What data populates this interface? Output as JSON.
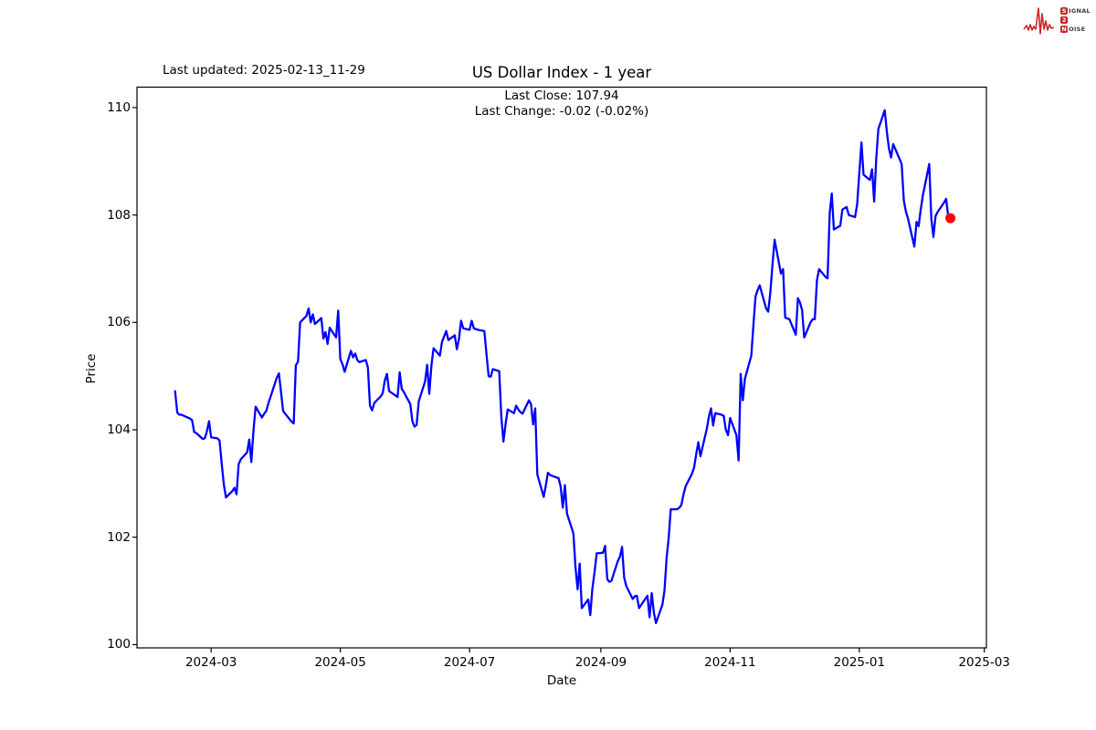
{
  "header": {
    "last_updated": "Last updated: 2025-02-13_11-29"
  },
  "logo": {
    "line1_first": "S",
    "line1_rest": "IGNAL",
    "line2": "2",
    "line3_first": "N",
    "line3_rest": "OISE",
    "accent_color": "#c62828"
  },
  "chart_data": {
    "type": "line",
    "title": "US Dollar Index - 1 year",
    "annotation": {
      "close_line": "Last Close: 107.94",
      "change_line": "Last Change: -0.02 (-0.02%)"
    },
    "last_close": 107.94,
    "last_change": "-0.02 (-0.02%)",
    "xlabel": "Date",
    "ylabel": "Price",
    "grid": false,
    "legend": null,
    "line_color": "#0000ff",
    "marker_color": "#ff0000",
    "ylim": [
      99.94,
      110.38
    ],
    "xlim": [
      "2024-01-26",
      "2025-03-02"
    ],
    "y_ticks": [
      100,
      102,
      104,
      106,
      108,
      110
    ],
    "x_ticks": [
      {
        "label": "2024-03",
        "date": "2024-03-01"
      },
      {
        "label": "2024-05",
        "date": "2024-05-01"
      },
      {
        "label": "2024-07",
        "date": "2024-07-01"
      },
      {
        "label": "2024-09",
        "date": "2024-09-01"
      },
      {
        "label": "2024-11",
        "date": "2024-11-01"
      },
      {
        "label": "2025-01",
        "date": "2025-01-01"
      },
      {
        "label": "2025-03",
        "date": "2025-03-01"
      }
    ],
    "series": [
      {
        "name": "US Dollar Index",
        "points": [
          [
            "2024-02-13",
            104.72
          ],
          [
            "2024-02-14",
            104.32
          ],
          [
            "2024-02-15",
            104.28
          ],
          [
            "2024-02-16",
            104.28
          ],
          [
            "2024-02-20",
            104.21
          ],
          [
            "2024-02-21",
            104.18
          ],
          [
            "2024-02-22",
            103.96
          ],
          [
            "2024-02-23",
            103.94
          ],
          [
            "2024-02-26",
            103.83
          ],
          [
            "2024-02-27",
            103.84
          ],
          [
            "2024-02-28",
            103.97
          ],
          [
            "2024-02-29",
            104.16
          ],
          [
            "2024-03-01",
            103.86
          ],
          [
            "2024-03-04",
            103.84
          ],
          [
            "2024-03-05",
            103.8
          ],
          [
            "2024-03-06",
            103.36
          ],
          [
            "2024-03-07",
            102.98
          ],
          [
            "2024-03-08",
            102.74
          ],
          [
            "2024-03-11",
            102.86
          ],
          [
            "2024-03-12",
            102.92
          ],
          [
            "2024-03-13",
            102.8
          ],
          [
            "2024-03-14",
            103.36
          ],
          [
            "2024-03-15",
            103.45
          ],
          [
            "2024-03-18",
            103.58
          ],
          [
            "2024-03-19",
            103.82
          ],
          [
            "2024-03-20",
            103.4
          ],
          [
            "2024-03-21",
            104.0
          ],
          [
            "2024-03-22",
            104.43
          ],
          [
            "2024-03-25",
            104.23
          ],
          [
            "2024-03-26",
            104.3
          ],
          [
            "2024-03-27",
            104.35
          ],
          [
            "2024-03-28",
            104.49
          ],
          [
            "2024-04-01",
            104.97
          ],
          [
            "2024-04-02",
            105.05
          ],
          [
            "2024-04-03",
            104.7
          ],
          [
            "2024-04-04",
            104.35
          ],
          [
            "2024-04-05",
            104.3
          ],
          [
            "2024-04-08",
            104.15
          ],
          [
            "2024-04-09",
            104.12
          ],
          [
            "2024-04-10",
            105.2
          ],
          [
            "2024-04-11",
            105.27
          ],
          [
            "2024-04-12",
            106.0
          ],
          [
            "2024-04-15",
            106.12
          ],
          [
            "2024-04-16",
            106.26
          ],
          [
            "2024-04-17",
            106.0
          ],
          [
            "2024-04-18",
            106.15
          ],
          [
            "2024-04-19",
            105.97
          ],
          [
            "2024-04-22",
            106.08
          ],
          [
            "2024-04-23",
            105.7
          ],
          [
            "2024-04-24",
            105.82
          ],
          [
            "2024-04-25",
            105.6
          ],
          [
            "2024-04-26",
            105.9
          ],
          [
            "2024-04-29",
            105.72
          ],
          [
            "2024-04-30",
            106.22
          ],
          [
            "2024-05-01",
            105.32
          ],
          [
            "2024-05-02",
            105.22
          ],
          [
            "2024-05-03",
            105.08
          ],
          [
            "2024-05-06",
            105.47
          ],
          [
            "2024-05-07",
            105.35
          ],
          [
            "2024-05-08",
            105.42
          ],
          [
            "2024-05-09",
            105.3
          ],
          [
            "2024-05-10",
            105.26
          ],
          [
            "2024-05-13",
            105.3
          ],
          [
            "2024-05-14",
            105.16
          ],
          [
            "2024-05-15",
            104.45
          ],
          [
            "2024-05-16",
            104.36
          ],
          [
            "2024-05-17",
            104.5
          ],
          [
            "2024-05-20",
            104.62
          ],
          [
            "2024-05-21",
            104.68
          ],
          [
            "2024-05-22",
            104.92
          ],
          [
            "2024-05-23",
            105.04
          ],
          [
            "2024-05-24",
            104.72
          ],
          [
            "2024-05-28",
            104.61
          ],
          [
            "2024-05-29",
            105.07
          ],
          [
            "2024-05-30",
            104.76
          ],
          [
            "2024-05-31",
            104.7
          ],
          [
            "2024-06-03",
            104.48
          ],
          [
            "2024-06-04",
            104.16
          ],
          [
            "2024-06-05",
            104.06
          ],
          [
            "2024-06-06",
            104.09
          ],
          [
            "2024-06-07",
            104.53
          ],
          [
            "2024-06-10",
            104.9
          ],
          [
            "2024-06-11",
            105.21
          ],
          [
            "2024-06-12",
            104.67
          ],
          [
            "2024-06-13",
            105.2
          ],
          [
            "2024-06-14",
            105.52
          ],
          [
            "2024-06-17",
            105.38
          ],
          [
            "2024-06-18",
            105.64
          ],
          [
            "2024-06-20",
            105.84
          ],
          [
            "2024-06-21",
            105.67
          ],
          [
            "2024-06-24",
            105.76
          ],
          [
            "2024-06-25",
            105.5
          ],
          [
            "2024-06-26",
            105.69
          ],
          [
            "2024-06-27",
            106.03
          ],
          [
            "2024-06-28",
            105.89
          ],
          [
            "2024-07-01",
            105.86
          ],
          [
            "2024-07-02",
            106.03
          ],
          [
            "2024-07-03",
            105.89
          ],
          [
            "2024-07-05",
            105.86
          ],
          [
            "2024-07-08",
            105.84
          ],
          [
            "2024-07-09",
            105.4
          ],
          [
            "2024-07-10",
            105.0
          ],
          [
            "2024-07-11",
            104.99
          ],
          [
            "2024-07-12",
            105.13
          ],
          [
            "2024-07-15",
            105.09
          ],
          [
            "2024-07-16",
            104.24
          ],
          [
            "2024-07-17",
            103.78
          ],
          [
            "2024-07-18",
            104.1
          ],
          [
            "2024-07-19",
            104.38
          ],
          [
            "2024-07-22",
            104.31
          ],
          [
            "2024-07-23",
            104.45
          ],
          [
            "2024-07-24",
            104.38
          ],
          [
            "2024-07-25",
            104.33
          ],
          [
            "2024-07-26",
            104.3
          ],
          [
            "2024-07-29",
            104.55
          ],
          [
            "2024-07-30",
            104.48
          ],
          [
            "2024-07-31",
            104.1
          ],
          [
            "2024-08-01",
            104.4
          ],
          [
            "2024-08-02",
            103.17
          ],
          [
            "2024-08-05",
            102.75
          ],
          [
            "2024-08-06",
            102.96
          ],
          [
            "2024-08-07",
            103.2
          ],
          [
            "2024-08-08",
            103.16
          ],
          [
            "2024-08-09",
            103.14
          ],
          [
            "2024-08-12",
            103.1
          ],
          [
            "2024-08-13",
            102.95
          ],
          [
            "2024-08-14",
            102.55
          ],
          [
            "2024-08-15",
            102.97
          ],
          [
            "2024-08-16",
            102.44
          ],
          [
            "2024-08-19",
            102.07
          ],
          [
            "2024-08-20",
            101.44
          ],
          [
            "2024-08-21",
            101.03
          ],
          [
            "2024-08-22",
            101.51
          ],
          [
            "2024-08-23",
            100.68
          ],
          [
            "2024-08-26",
            100.84
          ],
          [
            "2024-08-27",
            100.55
          ],
          [
            "2024-08-28",
            101.05
          ],
          [
            "2024-08-29",
            101.34
          ],
          [
            "2024-08-30",
            101.7
          ],
          [
            "2024-09-02",
            101.71
          ],
          [
            "2024-09-03",
            101.84
          ],
          [
            "2024-09-04",
            101.22
          ],
          [
            "2024-09-05",
            101.17
          ],
          [
            "2024-09-06",
            101.19
          ],
          [
            "2024-09-09",
            101.56
          ],
          [
            "2024-09-10",
            101.64
          ],
          [
            "2024-09-11",
            101.82
          ],
          [
            "2024-09-12",
            101.25
          ],
          [
            "2024-09-13",
            101.09
          ],
          [
            "2024-09-16",
            100.85
          ],
          [
            "2024-09-17",
            100.9
          ],
          [
            "2024-09-18",
            100.91
          ],
          [
            "2024-09-19",
            100.68
          ],
          [
            "2024-09-20",
            100.74
          ],
          [
            "2024-09-23",
            100.91
          ],
          [
            "2024-09-24",
            100.51
          ],
          [
            "2024-09-25",
            100.96
          ],
          [
            "2024-09-26",
            100.6
          ],
          [
            "2024-09-27",
            100.4
          ],
          [
            "2024-09-30",
            100.74
          ],
          [
            "2024-10-01",
            101.0
          ],
          [
            "2024-10-02",
            101.6
          ],
          [
            "2024-10-03",
            101.98
          ],
          [
            "2024-10-04",
            102.52
          ],
          [
            "2024-10-07",
            102.52
          ],
          [
            "2024-10-08",
            102.55
          ],
          [
            "2024-10-09",
            102.6
          ],
          [
            "2024-10-10",
            102.8
          ],
          [
            "2024-10-11",
            102.95
          ],
          [
            "2024-10-14",
            103.18
          ],
          [
            "2024-10-15",
            103.3
          ],
          [
            "2024-10-16",
            103.55
          ],
          [
            "2024-10-17",
            103.77
          ],
          [
            "2024-10-18",
            103.51
          ],
          [
            "2024-10-21",
            104.02
          ],
          [
            "2024-10-22",
            104.25
          ],
          [
            "2024-10-23",
            104.4
          ],
          [
            "2024-10-24",
            104.08
          ],
          [
            "2024-10-25",
            104.31
          ],
          [
            "2024-10-28",
            104.28
          ],
          [
            "2024-10-29",
            104.26
          ],
          [
            "2024-10-30",
            104.0
          ],
          [
            "2024-10-31",
            103.9
          ],
          [
            "2024-11-01",
            104.22
          ],
          [
            "2024-11-04",
            103.9
          ],
          [
            "2024-11-05",
            103.43
          ],
          [
            "2024-11-06",
            105.04
          ],
          [
            "2024-11-07",
            104.55
          ],
          [
            "2024-11-08",
            104.95
          ],
          [
            "2024-11-11",
            105.38
          ],
          [
            "2024-11-12",
            105.95
          ],
          [
            "2024-11-13",
            106.48
          ],
          [
            "2024-11-14",
            106.6
          ],
          [
            "2024-11-15",
            106.69
          ],
          [
            "2024-11-18",
            106.26
          ],
          [
            "2024-11-19",
            106.2
          ],
          [
            "2024-11-20",
            106.55
          ],
          [
            "2024-11-21",
            107.08
          ],
          [
            "2024-11-22",
            107.54
          ],
          [
            "2024-11-25",
            106.91
          ],
          [
            "2024-11-26",
            106.99
          ],
          [
            "2024-11-27",
            106.09
          ],
          [
            "2024-11-29",
            106.06
          ],
          [
            "2024-12-02",
            105.77
          ],
          [
            "2024-12-03",
            106.45
          ],
          [
            "2024-12-04",
            106.37
          ],
          [
            "2024-12-05",
            106.23
          ],
          [
            "2024-12-06",
            105.72
          ],
          [
            "2024-12-09",
            106.0
          ],
          [
            "2024-12-10",
            106.06
          ],
          [
            "2024-12-11",
            106.06
          ],
          [
            "2024-12-12",
            106.79
          ],
          [
            "2024-12-13",
            106.99
          ],
          [
            "2024-12-16",
            106.85
          ],
          [
            "2024-12-17",
            106.82
          ],
          [
            "2024-12-18",
            108.02
          ],
          [
            "2024-12-19",
            108.4
          ],
          [
            "2024-12-20",
            107.73
          ],
          [
            "2024-12-23",
            107.8
          ],
          [
            "2024-12-24",
            108.1
          ],
          [
            "2024-12-26",
            108.15
          ],
          [
            "2024-12-27",
            108.0
          ],
          [
            "2024-12-30",
            107.96
          ],
          [
            "2024-12-31",
            108.2
          ],
          [
            "2025-01-02",
            109.35
          ],
          [
            "2025-01-03",
            108.75
          ],
          [
            "2025-01-06",
            108.65
          ],
          [
            "2025-01-07",
            108.85
          ],
          [
            "2025-01-08",
            108.25
          ],
          [
            "2025-01-09",
            109.05
          ],
          [
            "2025-01-10",
            109.6
          ],
          [
            "2025-01-13",
            109.95
          ],
          [
            "2025-01-14",
            109.55
          ],
          [
            "2025-01-15",
            109.24
          ],
          [
            "2025-01-16",
            109.07
          ],
          [
            "2025-01-17",
            109.32
          ],
          [
            "2025-01-21",
            108.95
          ],
          [
            "2025-01-22",
            108.27
          ],
          [
            "2025-01-23",
            108.06
          ],
          [
            "2025-01-24",
            107.93
          ],
          [
            "2025-01-27",
            107.41
          ],
          [
            "2025-01-28",
            107.87
          ],
          [
            "2025-01-29",
            107.79
          ],
          [
            "2025-01-30",
            108.1
          ],
          [
            "2025-01-31",
            108.36
          ],
          [
            "2025-02-03",
            108.95
          ],
          [
            "2025-02-04",
            107.93
          ],
          [
            "2025-02-05",
            107.59
          ],
          [
            "2025-02-06",
            107.98
          ],
          [
            "2025-02-07",
            108.06
          ],
          [
            "2025-02-10",
            108.23
          ],
          [
            "2025-02-11",
            108.3
          ],
          [
            "2025-02-12",
            107.96
          ],
          [
            "2025-02-13",
            107.94
          ]
        ]
      }
    ]
  }
}
